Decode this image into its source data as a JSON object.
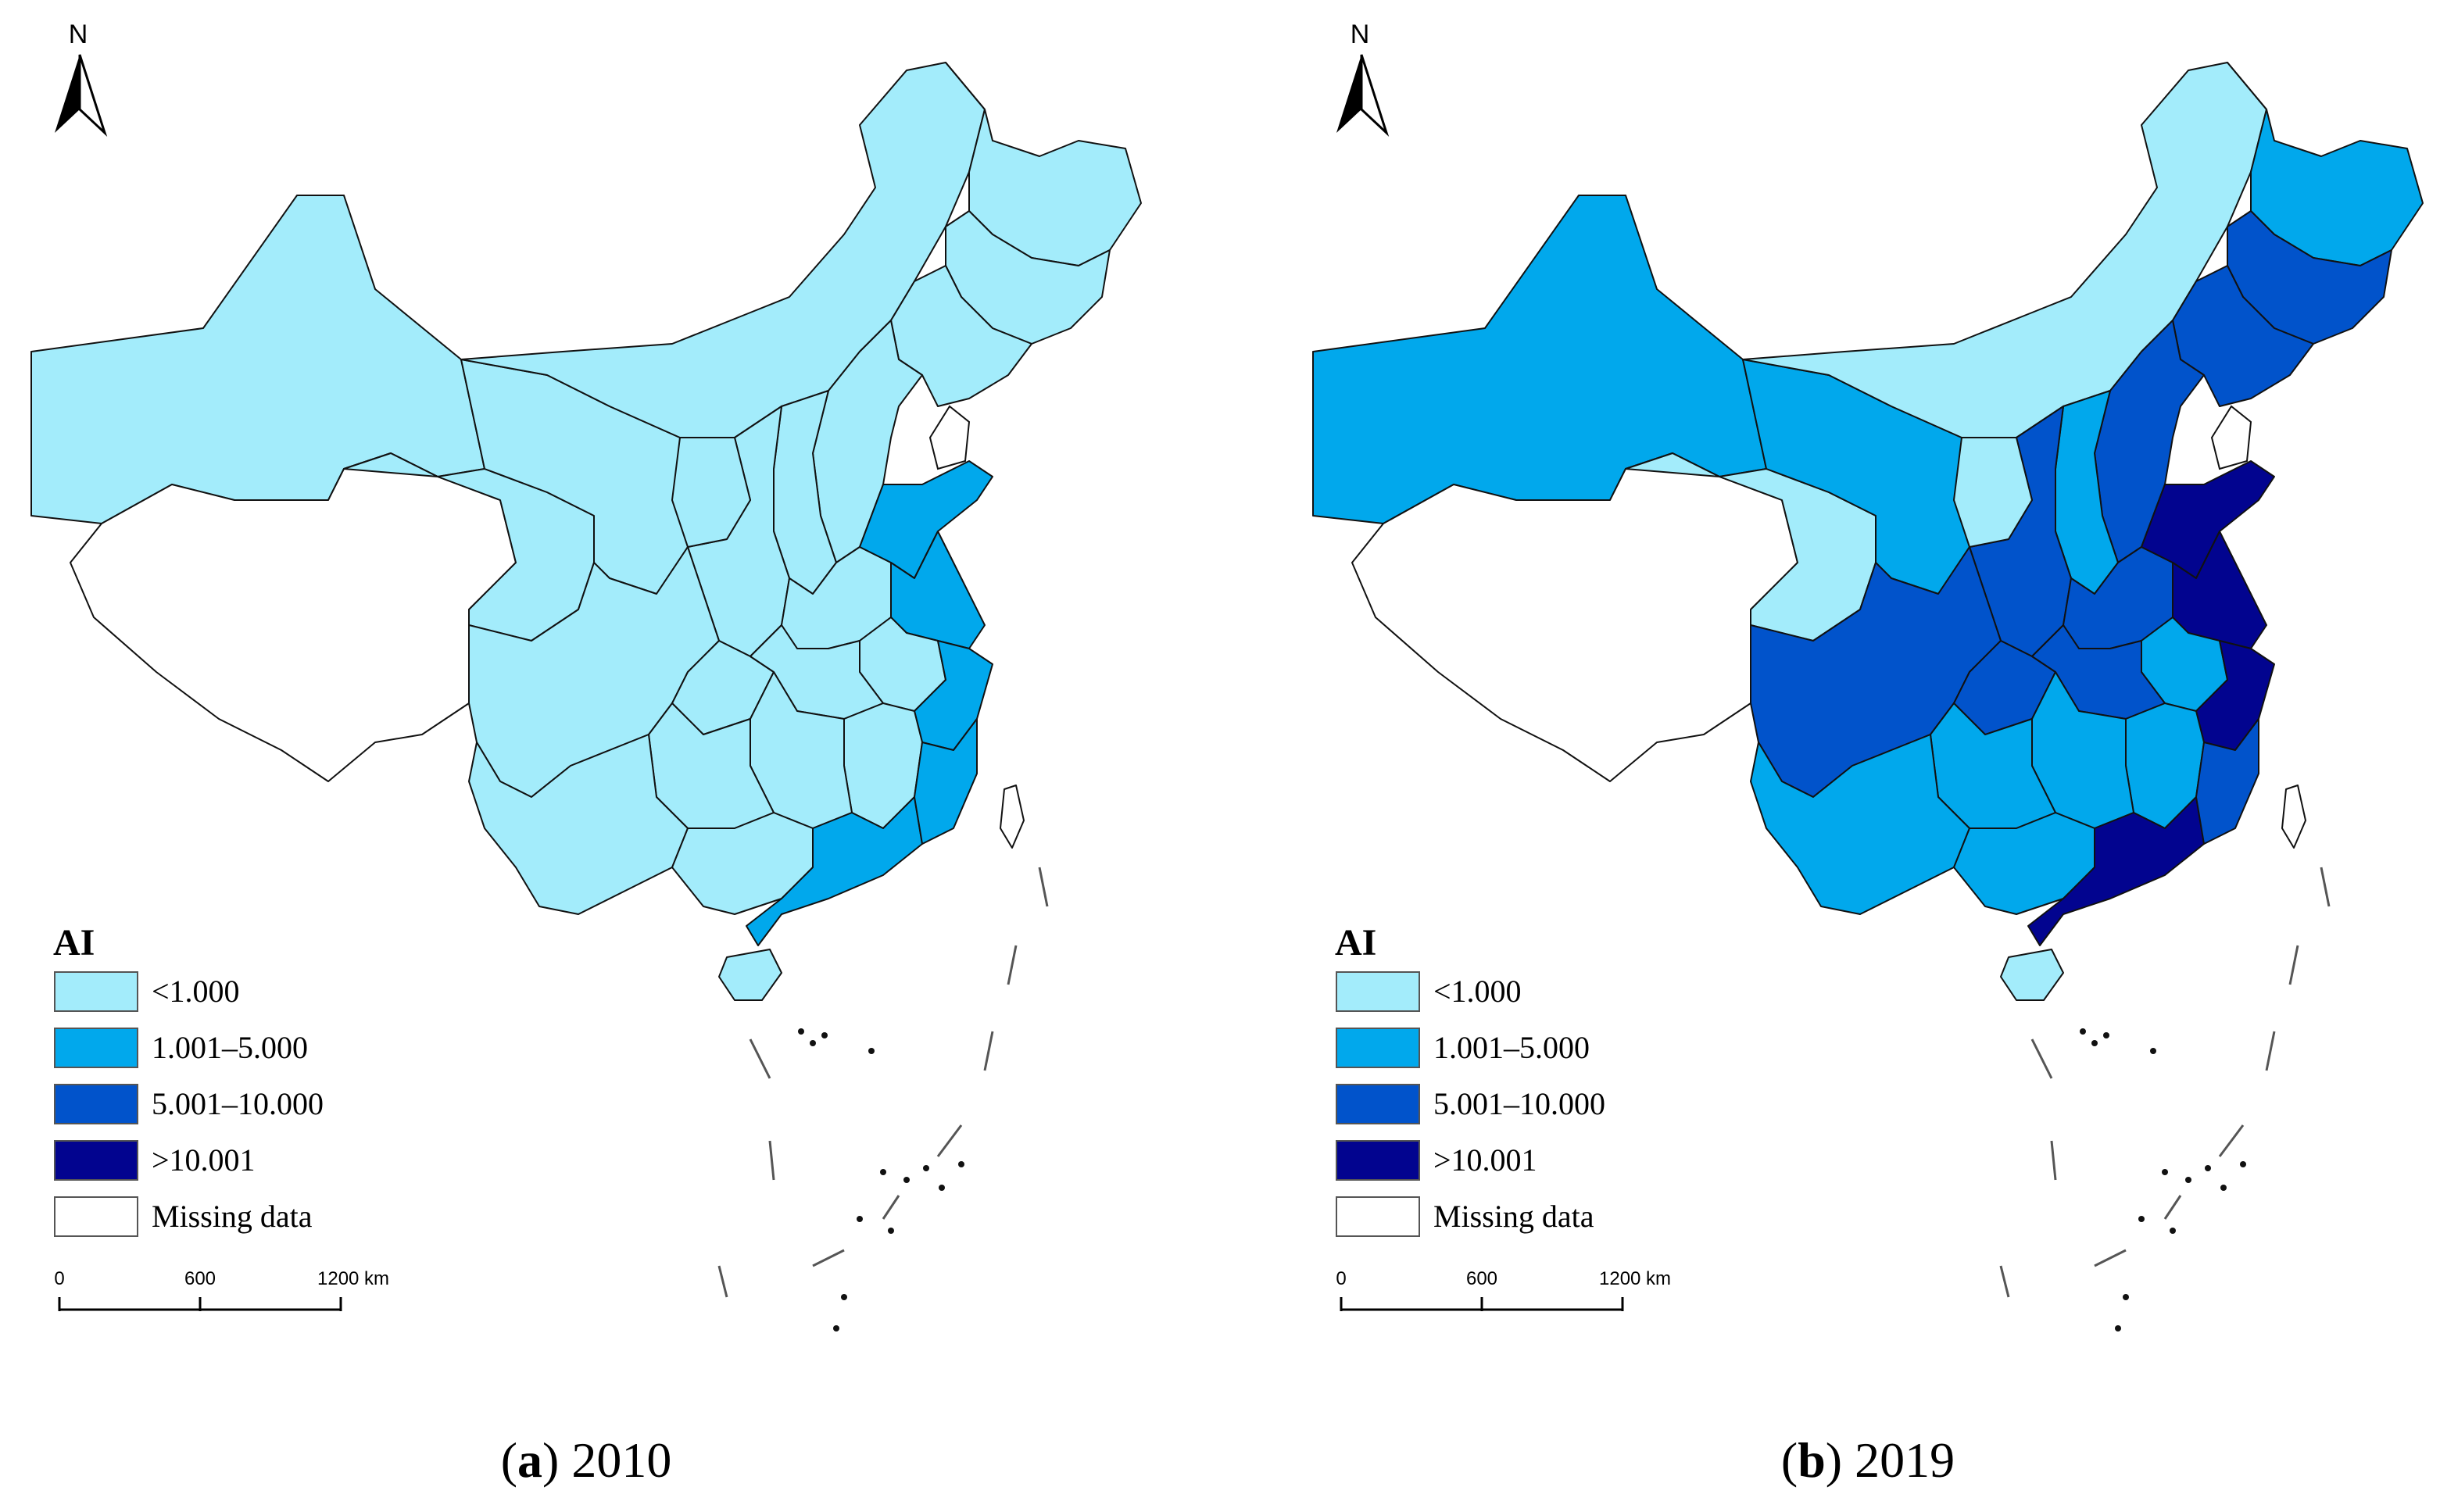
{
  "maps": [
    {
      "id": "a",
      "caption_letter": "a",
      "caption_year": "2010",
      "provinces": {
        "xinjiang": "1",
        "xizang": "missing",
        "qinghai": "1",
        "gansu": "1",
        "neimenggu": "1",
        "heilongjiang": "1",
        "jilin": "1",
        "liaoning": "1",
        "beijing_hebei": "1",
        "shanxi": "1",
        "shaanxi": "1",
        "ningxia": "1",
        "sichuan": "1",
        "chongqing": "1",
        "henan": "1",
        "shandong": "2",
        "jiangsu": "2",
        "anhui": "1",
        "hubei": "1",
        "zhejiang": "2",
        "jiangxi": "1",
        "hunan": "1",
        "guizhou": "1",
        "yunnan": "1",
        "guangxi": "1",
        "guangdong": "2",
        "fujian": "2",
        "hainan": "1",
        "taiwan": "missing"
      }
    },
    {
      "id": "b",
      "caption_letter": "b",
      "caption_year": "2019",
      "provinces": {
        "xinjiang": "2",
        "xizang": "missing",
        "qinghai": "1",
        "gansu": "2",
        "neimenggu": "1",
        "heilongjiang": "2",
        "jilin": "3",
        "liaoning": "3",
        "beijing_hebei": "3",
        "shanxi": "2",
        "shaanxi": "3",
        "ningxia": "1",
        "sichuan": "3",
        "chongqing": "3",
        "henan": "3",
        "shandong": "4",
        "jiangsu": "4",
        "anhui": "2",
        "hubei": "3",
        "zhejiang": "4",
        "jiangxi": "2",
        "hunan": "2",
        "guizhou": "2",
        "yunnan": "2",
        "guangxi": "2",
        "guangdong": "4",
        "fujian": "3",
        "hainan": "1",
        "taiwan": "missing"
      }
    }
  ],
  "legend": {
    "title": "AI",
    "classes": [
      {
        "key": "1",
        "label": "<1.000",
        "color": "#a3ecfb"
      },
      {
        "key": "2",
        "label": "1.001–5.000",
        "color": "#01a8ec"
      },
      {
        "key": "3",
        "label": "5.001–10.000",
        "color": "#0153cb"
      },
      {
        "key": "4",
        "label": ">10.001",
        "color": "#02048f"
      },
      {
        "key": "missing",
        "label": "Missing data",
        "color": "#ffffff"
      }
    ]
  },
  "north_arrow": {
    "label": "N"
  },
  "scale_bar": {
    "ticks": [
      "0",
      "600",
      "1200 km"
    ]
  }
}
